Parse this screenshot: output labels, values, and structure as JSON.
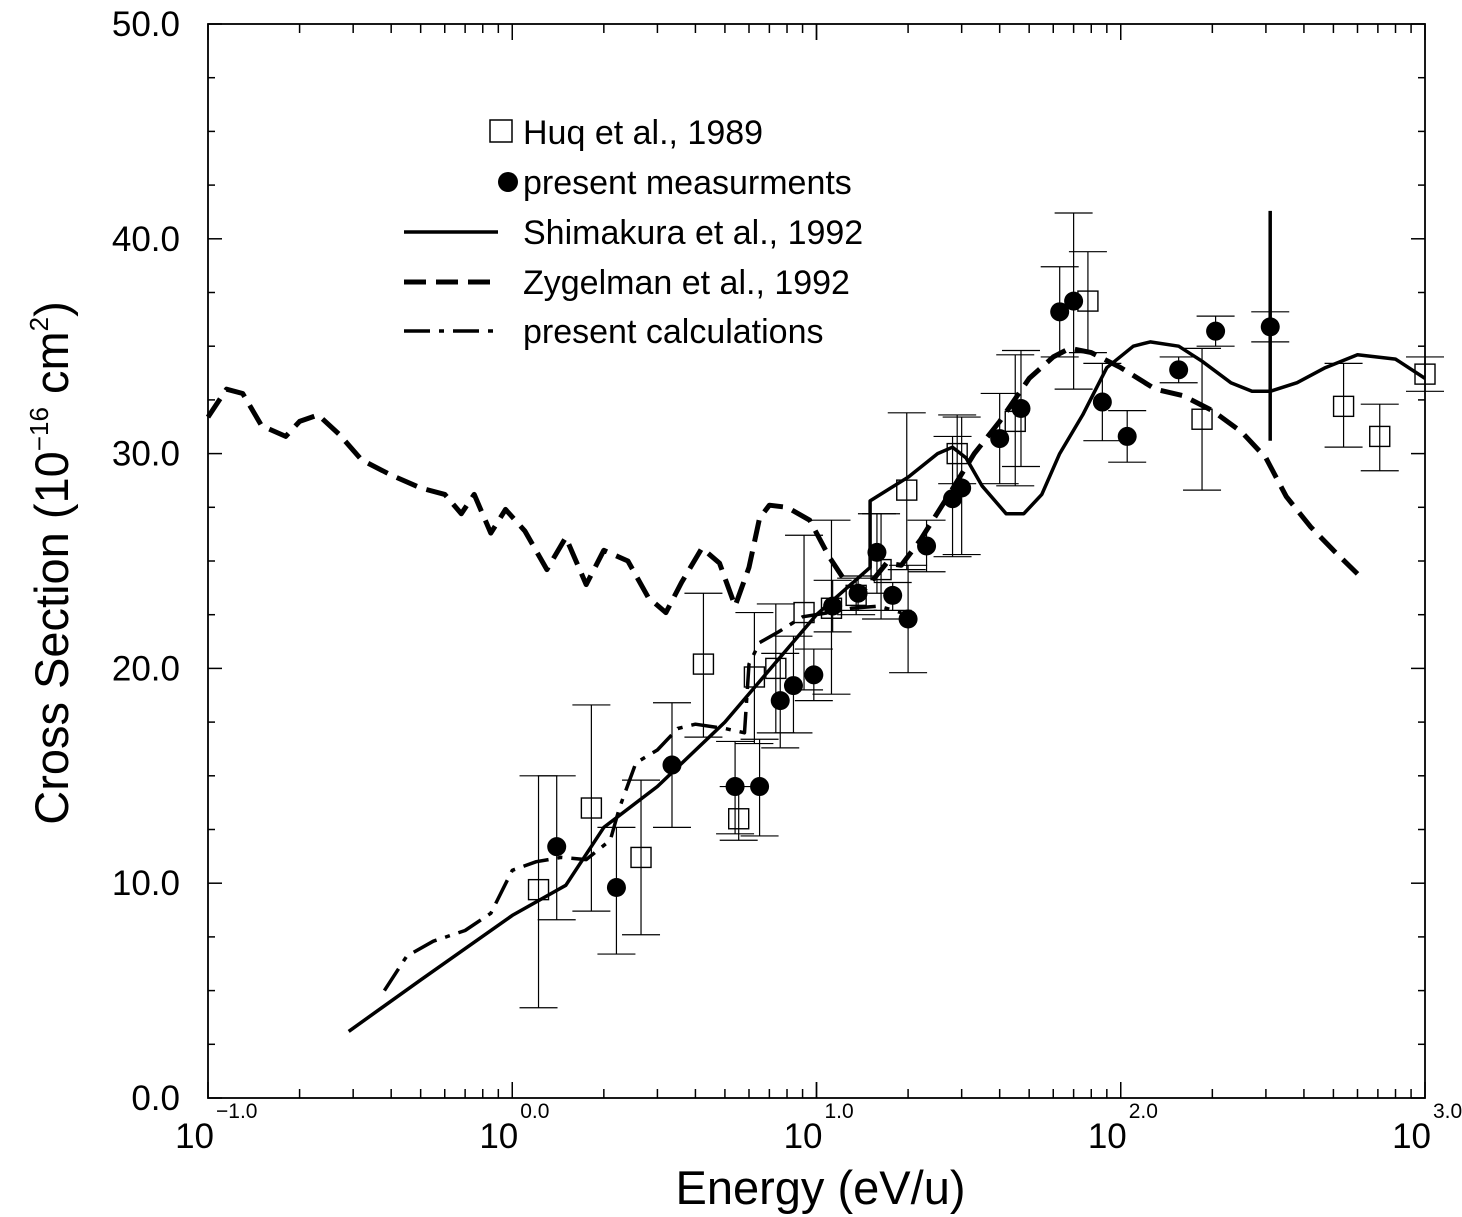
{
  "chart_data": {
    "type": "scatter",
    "xscale": "log",
    "xlim": [
      0.1,
      1000
    ],
    "ylim": [
      0,
      50
    ],
    "xlabel": "Energy (eV/u)",
    "ylabel": {
      "main": "Cross Section (10",
      "exp": "−16",
      "mid": " cm",
      "exp2": "2",
      "end": ")"
    },
    "title": "",
    "grid": false,
    "legend_position": "upper-left",
    "x_ticks": [
      {
        "base": "10",
        "exp": "−1.0"
      },
      {
        "base": "10",
        "exp": "0.0"
      },
      {
        "base": "10",
        "exp": "1.0"
      },
      {
        "base": "10",
        "exp": "2.0"
      },
      {
        "base": "10",
        "exp": "3.0"
      }
    ],
    "y_ticks": [
      "0.0",
      "10.0",
      "20.0",
      "30.0",
      "40.0",
      "50.0"
    ],
    "y_tick_values": [
      0,
      10,
      20,
      30,
      40,
      50
    ],
    "legend": [
      {
        "label": "Huq et al., 1989",
        "style": "open-square"
      },
      {
        "label": "present measurments",
        "style": "filled-circle"
      },
      {
        "label": "Shimakura et al., 1992",
        "style": "solid"
      },
      {
        "label": "Zygelman et al., 1992",
        "style": "dashed"
      },
      {
        "label": "present calculations",
        "style": "dash-dot"
      }
    ],
    "series": [
      {
        "name": "Huq et al., 1989",
        "kind": "points",
        "marker": "open-square",
        "points": [
          {
            "x": 1.22,
            "y": 9.7,
            "lo": 4.2,
            "hi": 15.0
          },
          {
            "x": 1.82,
            "y": 13.5,
            "lo": 8.7,
            "hi": 18.3
          },
          {
            "x": 2.65,
            "y": 11.2,
            "lo": 7.6,
            "hi": 14.8
          },
          {
            "x": 4.25,
            "y": 20.2,
            "lo": 16.8,
            "hi": 23.5
          },
          {
            "x": 5.55,
            "y": 13.0,
            "lo": 12.0,
            "hi": 14.5
          },
          {
            "x": 6.25,
            "y": 19.6,
            "lo": 16.5,
            "hi": 22.6
          },
          {
            "x": 7.35,
            "y": 20.0,
            "lo": 17.0,
            "hi": 23.0
          },
          {
            "x": 9.1,
            "y": 22.6,
            "lo": 19.0,
            "hi": 26.2
          },
          {
            "x": 11.2,
            "y": 22.8,
            "lo": 18.8,
            "hi": 26.9
          },
          {
            "x": 13.5,
            "y": 23.4,
            "lo": 22.5,
            "hi": 24.2
          },
          {
            "x": 16.3,
            "y": 24.6,
            "lo": 22.3,
            "hi": 27.2
          },
          {
            "x": 19.8,
            "y": 28.3,
            "lo": 24.6,
            "hi": 31.9
          },
          {
            "x": 29.0,
            "y": 30.0,
            "lo": 28.6,
            "hi": 31.8
          },
          {
            "x": 45.0,
            "y": 31.5,
            "lo": 28.5,
            "hi": 34.6
          },
          {
            "x": 78.0,
            "y": 37.1,
            "lo": 34.7,
            "hi": 39.4
          },
          {
            "x": 185.0,
            "y": 31.6,
            "lo": 28.3,
            "hi": 34.9
          },
          {
            "x": 540.0,
            "y": 32.2,
            "lo": 30.3,
            "hi": 34.2
          },
          {
            "x": 710.0,
            "y": 30.8,
            "lo": 29.2,
            "hi": 32.3
          },
          {
            "x": 1000.0,
            "y": 33.7,
            "lo": 32.9,
            "hi": 34.5
          }
        ]
      },
      {
        "name": "present measurments",
        "kind": "points",
        "marker": "filled-circle",
        "points": [
          {
            "x": 1.4,
            "y": 11.7,
            "lo": 8.3,
            "hi": 15.0
          },
          {
            "x": 2.2,
            "y": 9.8,
            "lo": 6.7,
            "hi": 12.6
          },
          {
            "x": 3.35,
            "y": 15.5,
            "lo": 12.6,
            "hi": 18.4
          },
          {
            "x": 5.4,
            "y": 14.5,
            "lo": 12.3,
            "hi": 16.6
          },
          {
            "x": 6.5,
            "y": 14.5,
            "lo": 12.2,
            "hi": 16.7
          },
          {
            "x": 7.6,
            "y": 18.5,
            "lo": 16.3,
            "hi": 20.7
          },
          {
            "x": 8.4,
            "y": 19.2,
            "lo": 17.0,
            "hi": 21.5
          },
          {
            "x": 9.8,
            "y": 19.7,
            "lo": 18.5,
            "hi": 20.9
          },
          {
            "x": 11.3,
            "y": 22.9,
            "lo": 21.7,
            "hi": 24.1
          },
          {
            "x": 13.7,
            "y": 23.5,
            "lo": 22.7,
            "hi": 24.3
          },
          {
            "x": 15.8,
            "y": 25.4,
            "lo": 23.5,
            "hi": 27.2
          },
          {
            "x": 17.8,
            "y": 23.4,
            "lo": 22.7,
            "hi": 24.0
          },
          {
            "x": 20.0,
            "y": 22.3,
            "lo": 19.8,
            "hi": 24.8
          },
          {
            "x": 23.0,
            "y": 25.7,
            "lo": 24.5,
            "hi": 26.9
          },
          {
            "x": 28.0,
            "y": 27.9,
            "lo": 25.2,
            "hi": 30.8
          },
          {
            "x": 30.0,
            "y": 28.4,
            "lo": 25.3,
            "hi": 31.7
          },
          {
            "x": 40.0,
            "y": 30.7,
            "lo": 28.6,
            "hi": 32.8
          },
          {
            "x": 47.0,
            "y": 32.1,
            "lo": 29.4,
            "hi": 34.8
          },
          {
            "x": 63.0,
            "y": 36.6,
            "lo": 34.5,
            "hi": 38.7
          },
          {
            "x": 70.0,
            "y": 37.1,
            "lo": 33.0,
            "hi": 41.2
          },
          {
            "x": 87.0,
            "y": 32.4,
            "lo": 30.6,
            "hi": 34.2
          },
          {
            "x": 105.0,
            "y": 30.8,
            "lo": 29.6,
            "hi": 32.0
          },
          {
            "x": 155.0,
            "y": 33.9,
            "lo": 33.3,
            "hi": 34.5
          },
          {
            "x": 205.0,
            "y": 35.7,
            "lo": 35.0,
            "hi": 36.4
          },
          {
            "x": 310.0,
            "y": 35.9,
            "lo": 35.2,
            "hi": 36.6
          }
        ]
      },
      {
        "name": "Shimakura et al., 1992",
        "kind": "line",
        "dash": "",
        "points": [
          [
            0.29,
            3.1
          ],
          [
            0.5,
            5.5
          ],
          [
            1.0,
            8.5
          ],
          [
            1.5,
            9.9
          ],
          [
            2.0,
            12.6
          ],
          [
            3.0,
            14.5
          ],
          [
            5.0,
            17.5
          ],
          [
            10.0,
            22.5
          ],
          [
            15.0,
            24.7
          ],
          [
            15.0,
            27.8
          ],
          [
            20.0,
            28.9
          ],
          [
            25.0,
            30.0
          ],
          [
            28.0,
            30.3
          ],
          [
            31.0,
            29.8
          ],
          [
            35.0,
            28.5
          ],
          [
            42.0,
            27.2
          ],
          [
            48.0,
            27.2
          ],
          [
            55.0,
            28.1
          ],
          [
            63.0,
            30.0
          ],
          [
            75.0,
            31.8
          ],
          [
            90.0,
            34.0
          ],
          [
            110.0,
            35.0
          ],
          [
            125.0,
            35.2
          ],
          [
            155.0,
            35.0
          ],
          [
            185.0,
            34.3
          ],
          [
            230.0,
            33.3
          ],
          [
            270.0,
            32.9
          ],
          [
            310.0,
            32.9
          ],
          [
            380.0,
            33.3
          ],
          [
            470.0,
            34.0
          ],
          [
            600.0,
            34.6
          ],
          [
            800.0,
            34.4
          ],
          [
            1000.0,
            33.5
          ]
        ]
      },
      {
        "name": "Shimakura et al., 1992 (vertical segment)",
        "kind": "line",
        "dash": "",
        "points": [
          [
            310.0,
            30.6
          ],
          [
            310.0,
            41.3
          ]
        ]
      },
      {
        "name": "Zygelman et al., 1992",
        "kind": "line",
        "dash": "dashed",
        "points": [
          [
            0.1,
            31.7
          ],
          [
            0.115,
            33.0
          ],
          [
            0.13,
            32.8
          ],
          [
            0.15,
            31.3
          ],
          [
            0.18,
            30.8
          ],
          [
            0.2,
            31.5
          ],
          [
            0.23,
            31.8
          ],
          [
            0.27,
            30.9
          ],
          [
            0.32,
            29.7
          ],
          [
            0.4,
            29.0
          ],
          [
            0.5,
            28.4
          ],
          [
            0.6,
            28.1
          ],
          [
            0.68,
            27.2
          ],
          [
            0.75,
            28.1
          ],
          [
            0.85,
            26.3
          ],
          [
            0.95,
            27.4
          ],
          [
            1.1,
            26.4
          ],
          [
            1.3,
            24.6
          ],
          [
            1.5,
            26.1
          ],
          [
            1.75,
            23.9
          ],
          [
            2.0,
            25.5
          ],
          [
            2.4,
            25.0
          ],
          [
            2.8,
            23.3
          ],
          [
            3.2,
            22.6
          ],
          [
            3.6,
            24.0
          ],
          [
            4.2,
            25.6
          ],
          [
            4.8,
            24.9
          ],
          [
            5.4,
            22.9
          ],
          [
            6.0,
            24.7
          ],
          [
            6.5,
            27.0
          ],
          [
            7.0,
            27.6
          ],
          [
            8.0,
            27.5
          ],
          [
            9.5,
            26.9
          ],
          [
            11.0,
            25.2
          ],
          [
            12.5,
            24.0
          ],
          [
            14.0,
            23.5
          ],
          [
            15.5,
            24.2
          ],
          [
            17.0,
            24.9
          ],
          [
            19.0,
            24.8
          ],
          [
            22.0,
            26.0
          ],
          [
            27.0,
            28.0
          ],
          [
            33.0,
            30.0
          ],
          [
            40.0,
            31.5
          ],
          [
            50.0,
            33.5
          ],
          [
            60.0,
            34.5
          ],
          [
            68.0,
            34.9
          ],
          [
            80.0,
            34.7
          ],
          [
            100.0,
            34.0
          ],
          [
            130.0,
            33.0
          ],
          [
            160.0,
            32.7
          ],
          [
            200.0,
            32.0
          ],
          [
            250.0,
            31.0
          ],
          [
            300.0,
            29.8
          ],
          [
            350.0,
            28.0
          ],
          [
            420.0,
            26.6
          ],
          [
            500.0,
            25.5
          ],
          [
            600.0,
            24.4
          ]
        ]
      },
      {
        "name": "present calculations",
        "kind": "line",
        "dash": "dash-dot",
        "points": [
          [
            0.38,
            5.0
          ],
          [
            0.45,
            6.6
          ],
          [
            0.55,
            7.3
          ],
          [
            0.7,
            7.8
          ],
          [
            0.85,
            8.6
          ],
          [
            1.0,
            10.6
          ],
          [
            1.2,
            11.0
          ],
          [
            1.45,
            11.2
          ],
          [
            1.75,
            11.1
          ],
          [
            2.1,
            12.0
          ],
          [
            2.25,
            13.5
          ],
          [
            2.55,
            15.6
          ],
          [
            3.0,
            16.2
          ],
          [
            3.5,
            17.2
          ],
          [
            4.0,
            17.4
          ],
          [
            5.0,
            17.2
          ],
          [
            5.8,
            17.0
          ],
          [
            6.0,
            20.2
          ],
          [
            6.5,
            21.2
          ],
          [
            7.5,
            21.7
          ],
          [
            9.0,
            22.4
          ],
          [
            11.0,
            22.6
          ],
          [
            13.0,
            22.8
          ],
          [
            16.0,
            22.9
          ],
          [
            19.0,
            22.6
          ]
        ]
      }
    ]
  },
  "colors": {
    "ink": "#000000",
    "background": "#ffffff"
  }
}
